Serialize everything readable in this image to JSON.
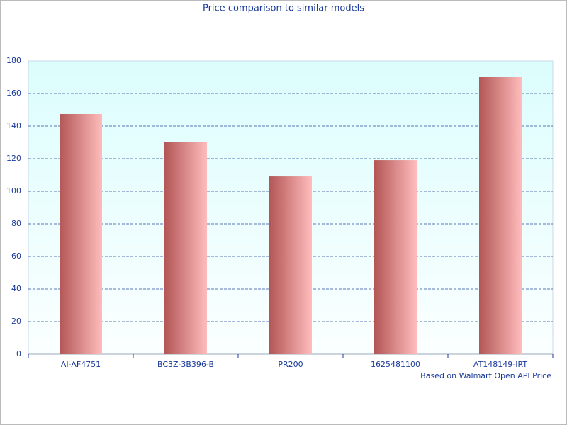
{
  "chart_data": {
    "type": "bar",
    "title": "Price comparison to similar models",
    "note": "Based on Walmart Open API Price",
    "categories": [
      "AI-AF4751",
      "BC3Z-3B396-B",
      "PR200",
      "1625481100",
      "AT148149-IRT"
    ],
    "values": [
      147.4,
      130.4,
      109.1,
      119.1,
      170
    ],
    "color": [
      "#b35656",
      "#ffbcbc"
    ],
    "ylim": [
      0,
      180
    ],
    "yticks": [
      0,
      20,
      40,
      60,
      80,
      100,
      120,
      140,
      160,
      180
    ],
    "grid": true
  }
}
